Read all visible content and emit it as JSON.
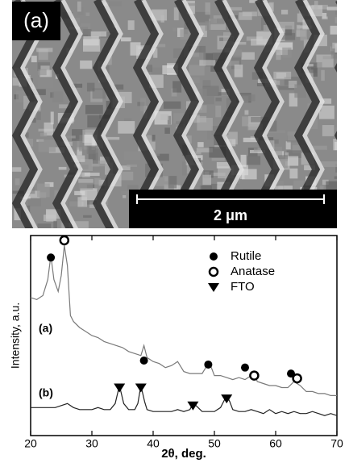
{
  "image": {
    "label": "(a)",
    "scale_bar": "2 μm"
  },
  "chart_data": {
    "type": "line",
    "xlabel": "2θ, deg.",
    "ylabel": "Intensity, a.u.",
    "xlim": [
      20,
      70
    ],
    "xticks": [
      20,
      30,
      40,
      50,
      60,
      70
    ],
    "ylim": [
      0,
      100
    ],
    "series": [
      {
        "name": "(a)",
        "color": "#7a7a7a",
        "x": [
          20,
          21,
          22,
          22.8,
          23.3,
          23.8,
          24.5,
          25,
          25.5,
          26,
          26.5,
          27,
          28,
          29,
          30,
          31,
          32,
          33,
          34,
          35,
          36,
          37,
          38,
          38.5,
          39,
          40,
          41,
          42,
          43,
          44,
          45,
          46,
          47,
          48,
          49,
          49.5,
          50,
          51,
          52,
          53,
          54,
          55,
          56,
          56.5,
          57,
          58,
          59,
          60,
          61,
          62,
          63,
          64,
          65,
          66,
          67,
          68,
          69,
          70
        ],
        "values": [
          69,
          68,
          70,
          78,
          90,
          78,
          72,
          80,
          95,
          85,
          60,
          57,
          54,
          52,
          50,
          49,
          47,
          46,
          45,
          44,
          42,
          41,
          40,
          45,
          39,
          37,
          36,
          34,
          35,
          37,
          32,
          31,
          31,
          31,
          36,
          34,
          30,
          30,
          29,
          28,
          29,
          28,
          30,
          31,
          27,
          26,
          25,
          25,
          24,
          24,
          27,
          25,
          22,
          22,
          21,
          21,
          20,
          20
        ]
      },
      {
        "name": "(b)",
        "color": "#222222",
        "x": [
          20,
          22,
          24,
          25,
          26,
          27,
          28,
          30,
          31,
          32,
          33,
          33.8,
          34.5,
          35.2,
          36,
          37,
          37.5,
          38,
          38.6,
          39,
          40,
          41,
          42,
          43,
          44,
          45,
          46,
          46.5,
          47,
          48,
          49,
          50,
          51,
          52,
          52.5,
          53,
          54,
          55,
          56,
          57,
          58,
          59,
          60,
          61,
          62,
          63,
          64,
          65,
          66,
          67,
          68,
          69,
          70
        ],
        "values": [
          14,
          14,
          14,
          15,
          16,
          14,
          13,
          13,
          14,
          13,
          13,
          16,
          25,
          16,
          13,
          13,
          16,
          25,
          17,
          13,
          12,
          12,
          12,
          12,
          13,
          12,
          13,
          16,
          15,
          12,
          12,
          12,
          14,
          20,
          17,
          13,
          12,
          12,
          13,
          12,
          11,
          13,
          11,
          12,
          11,
          12,
          11,
          11,
          12,
          11,
          10,
          11,
          10
        ]
      }
    ],
    "phases": [
      {
        "name": "Rutile",
        "marker": "filled-circle",
        "x": [
          23.3,
          38.5,
          49,
          55,
          62.5
        ],
        "y": [
          89,
          37.5,
          35.5,
          34,
          31
        ]
      },
      {
        "name": "Anatase",
        "marker": "open-circle",
        "x": [
          25.5,
          56.5,
          63.5
        ],
        "y": [
          97.6,
          30,
          28.6
        ]
      },
      {
        "name": "FTO",
        "marker": "triangle",
        "x": [
          34.5,
          38,
          46.5,
          52
        ],
        "y": [
          24,
          24,
          15,
          18.5
        ]
      }
    ]
  }
}
